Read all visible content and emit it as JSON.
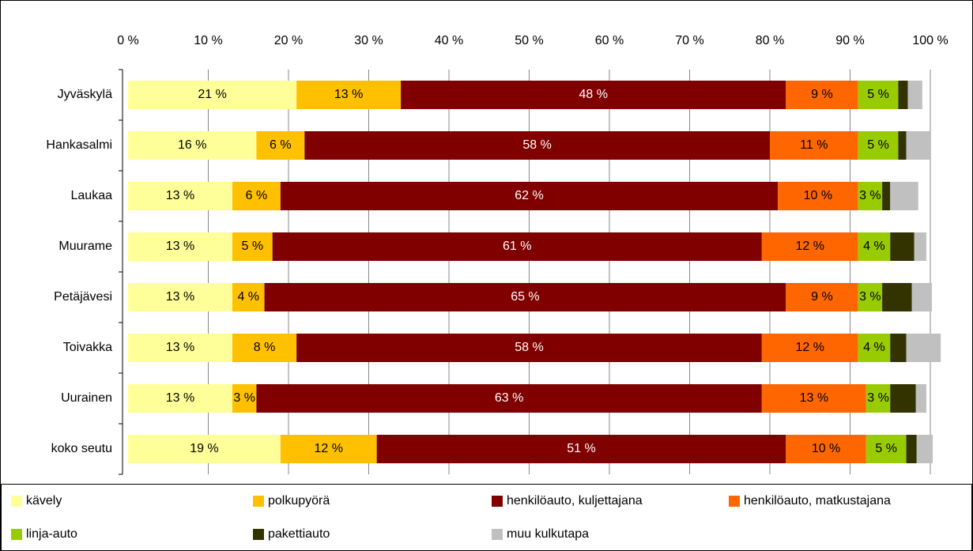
{
  "chart_data": {
    "type": "bar",
    "orientation": "horizontal",
    "stacked": true,
    "legend": "bottom",
    "grid": true,
    "categories": [
      "Jyväskylä",
      "Hankasalmi",
      "Laukaa",
      "Muurame",
      "Petäjävesi",
      "Toivakka",
      "Uurainen",
      "koko seutu"
    ],
    "xlim": [
      0,
      100
    ],
    "xticks": [
      {
        "value": 0,
        "label": "0 %"
      },
      {
        "value": 10,
        "label": "10 %"
      },
      {
        "value": 20,
        "label": "20 %"
      },
      {
        "value": 30,
        "label": "30 %"
      },
      {
        "value": 40,
        "label": "40 %"
      },
      {
        "value": 50,
        "label": "50 %"
      },
      {
        "value": 60,
        "label": "60 %"
      },
      {
        "value": 70,
        "label": "70 %"
      },
      {
        "value": 80,
        "label": "80 %"
      },
      {
        "value": 90,
        "label": "90 %"
      },
      {
        "value": 100,
        "label": "100 %"
      }
    ],
    "series": [
      {
        "name": "kävely",
        "color": "#ffff99",
        "text_color": "#000000",
        "values": [
          21,
          16,
          13,
          13,
          13,
          13,
          13,
          19
        ],
        "value_labels": [
          "21 %",
          "16 %",
          "13 %",
          "13 %",
          "13 %",
          "13 %",
          "13 %",
          "19 %"
        ]
      },
      {
        "name": "polkupyörä",
        "color": "#ffc000",
        "text_color": "#000000",
        "values": [
          13,
          6,
          6,
          5,
          4,
          8,
          3,
          12
        ],
        "value_labels": [
          "13 %",
          "6 %",
          "6 %",
          "5 %",
          "4 %",
          "8 %",
          "3 %",
          "12 %"
        ]
      },
      {
        "name": "henkilöauto, kuljettajana",
        "color": "#800000",
        "text_color": "#ffffff",
        "values": [
          48,
          58,
          62,
          61,
          65,
          58,
          63,
          51
        ],
        "value_labels": [
          "48 %",
          "58 %",
          "62 %",
          "61 %",
          "65 %",
          "58 %",
          "63 %",
          "51 %"
        ]
      },
      {
        "name": "henkilöauto, matkustajana",
        "color": "#ff6600",
        "text_color": "#000000",
        "values": [
          9,
          11,
          10,
          12,
          9,
          12,
          13,
          10
        ],
        "value_labels": [
          "9 %",
          "11 %",
          "10 %",
          "12 %",
          "9 %",
          "12 %",
          "13 %",
          "10 %"
        ]
      },
      {
        "name": "linja-auto",
        "color": "#99cc00",
        "text_color": "#000000",
        "values": [
          5,
          5,
          3,
          4,
          3,
          4,
          3,
          5
        ],
        "value_labels": [
          "5 %",
          "5 %",
          "3 %",
          "4 %",
          "3 %",
          "4 %",
          "3 %",
          "5 %"
        ]
      },
      {
        "name": "pakettiauto",
        "color": "#333300",
        "text_color": "#ffffff",
        "values": [
          1.2,
          1,
          1,
          3,
          3.7,
          2,
          3.2,
          1.3
        ]
      },
      {
        "name": "muu kulkutapa",
        "color": "#c0c0c0",
        "text_color": "#000000",
        "values": [
          1.8,
          3,
          3.5,
          1.5,
          2.5,
          4.3,
          1.3,
          2
        ]
      }
    ]
  }
}
